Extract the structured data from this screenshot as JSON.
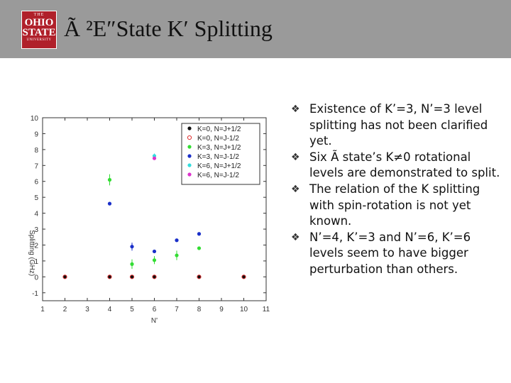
{
  "header": {
    "title": "Ã ²E″State K′ Splitting",
    "logo": {
      "line1": "THE",
      "line2": "OHIO",
      "line3": "STATE",
      "line4": "UNIVERSITY"
    }
  },
  "bullets": [
    "Existence of K’=3, N’=3 level splitting has not been clarified yet.",
    "Six Ã state’s K≠0 rotational levels are demonstrated to split.",
    "The relation of the K splitting with spin-rotation is not yet known.",
    "N’=4, K’=3 and N’=6, K’=6 levels seem to have bigger perturbation than others."
  ],
  "bullet_marker": "❖",
  "chart_data": {
    "type": "scatter",
    "xlabel": "N'",
    "ylabel": "Splitting (GHz)",
    "xlim": [
      1,
      11
    ],
    "ylim": [
      -1.5,
      10
    ],
    "xticks": [
      1,
      2,
      3,
      4,
      5,
      6,
      7,
      8,
      9,
      10,
      11
    ],
    "yticks": [
      -1,
      0,
      1,
      2,
      3,
      4,
      5,
      6,
      7,
      8,
      9,
      10
    ],
    "legend_position": "top-right",
    "series": [
      {
        "name": "K=0, N=J+1/2",
        "color": "#111111",
        "marker": "filled",
        "points": [
          [
            2,
            0
          ],
          [
            4,
            0
          ],
          [
            5,
            0
          ],
          [
            6,
            0
          ],
          [
            8,
            0
          ],
          [
            10,
            0
          ]
        ]
      },
      {
        "name": "K=0, N=J-1/2",
        "color": "#e03030",
        "marker": "open",
        "points": [
          [
            2,
            0
          ],
          [
            4,
            0
          ],
          [
            5,
            0
          ],
          [
            6,
            0
          ],
          [
            8,
            0
          ],
          [
            10,
            0
          ]
        ]
      },
      {
        "name": "K=3, N=J+1/2",
        "color": "#33dd33",
        "marker": "filled",
        "points": [
          [
            4,
            6.1,
            0.35
          ],
          [
            5,
            0.8,
            0.3
          ],
          [
            6,
            1.05,
            0.25
          ],
          [
            7,
            1.35,
            0.3
          ],
          [
            8,
            1.8,
            0.1
          ]
        ]
      },
      {
        "name": "K=3, N=J-1/2",
        "color": "#1a2fc9",
        "marker": "filled",
        "points": [
          [
            4,
            4.6,
            0.1
          ],
          [
            5,
            1.9,
            0.25
          ],
          [
            6,
            1.6,
            0.1
          ],
          [
            7,
            2.3,
            0.1
          ],
          [
            8,
            2.7,
            0.1
          ]
        ]
      },
      {
        "name": "K=6, N=J+1/2",
        "color": "#33dddd",
        "marker": "filled",
        "points": [
          [
            6,
            7.6,
            0.15
          ]
        ]
      },
      {
        "name": "K=6, N=J-1/2",
        "color": "#dd33cc",
        "marker": "filled",
        "points": [
          [
            6,
            7.45,
            0.1
          ]
        ]
      }
    ]
  }
}
